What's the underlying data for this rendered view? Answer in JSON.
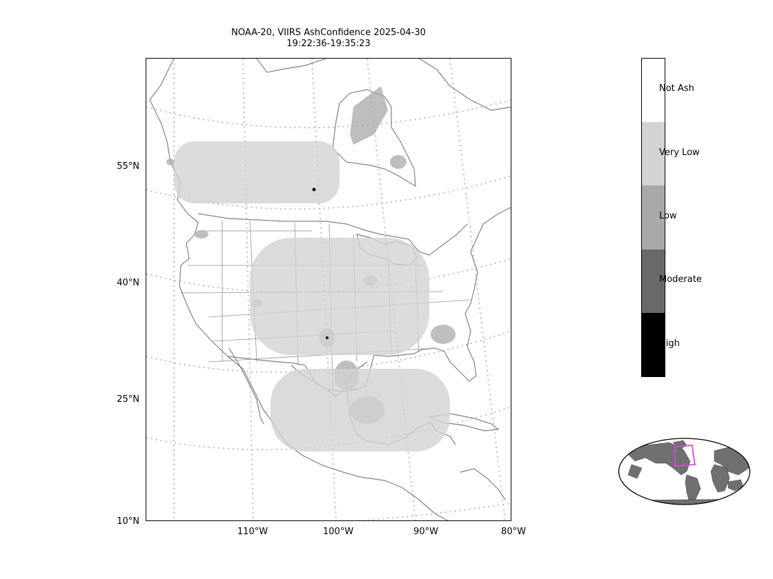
{
  "title": {
    "line1": "NOAA-20, VIIRS AshConfidence 2025-04-30",
    "line2": "19:22:36-19:35:23"
  },
  "map": {
    "lat_labels": [
      "55°N",
      "40°N",
      "25°N",
      "10°N"
    ],
    "lon_labels": [
      "110°W",
      "100°W",
      "90°W",
      "80°W"
    ],
    "coast_color": "#808080",
    "grid_color": "#bbbbbb"
  },
  "colorbar": {
    "categories": [
      {
        "label": "Not Ash",
        "color": "#ffffff"
      },
      {
        "label": "Very Low",
        "color": "#d3d3d3"
      },
      {
        "label": "Low",
        "color": "#a9a9a9"
      },
      {
        "label": "Moderate",
        "color": "#696969"
      },
      {
        "label": "High",
        "color": "#000000"
      }
    ]
  },
  "inset": {
    "land_color": "#707070",
    "box_color": "#dd44dd"
  }
}
